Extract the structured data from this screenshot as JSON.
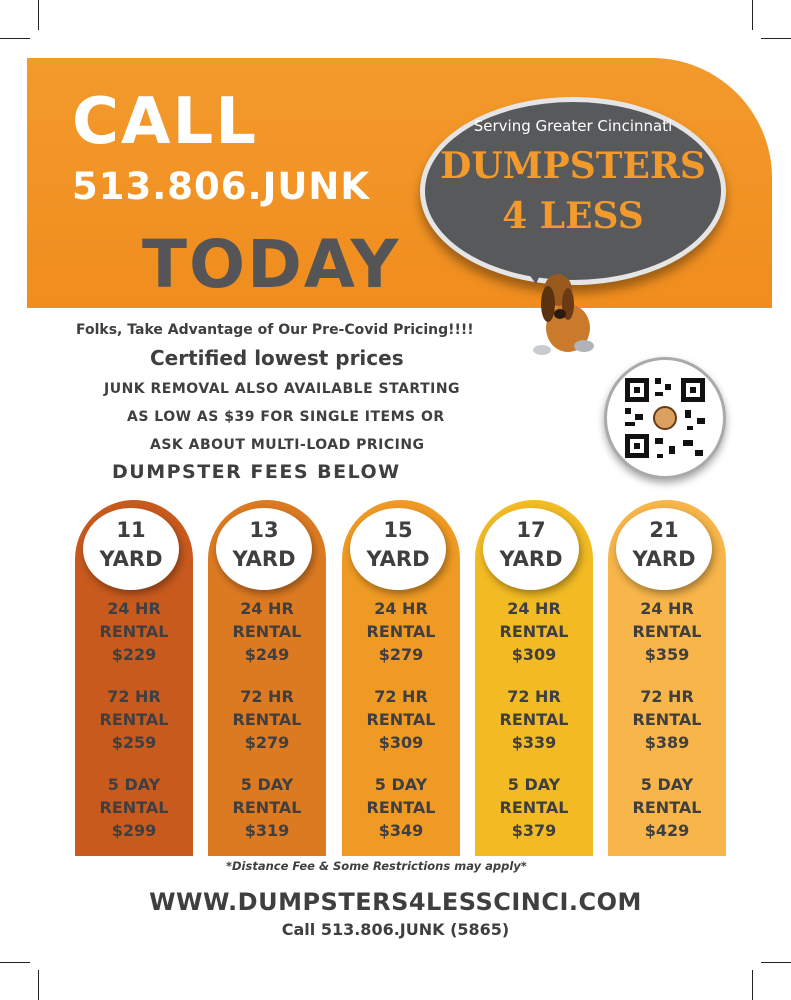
{
  "banner": {
    "call": "CALL",
    "number": "513.806.JUNK",
    "today": "TODAY"
  },
  "bubble": {
    "serving": "Serving Greater Cincinnati",
    "brand_line1": "DUMPSTERS",
    "brand_line2": "4 LESS"
  },
  "promo": {
    "line1": "Folks, Take Advantage of Our Pre-Covid Pricing!!!!",
    "line2": "Certified lowest prices",
    "line3": "JUNK REMOVAL ALSO AVAILABLE STARTING",
    "line4": "AS LOW AS $39 FOR SINGLE ITEMS OR",
    "line5": "ASK ABOUT MULTI-LOAD PRICING",
    "line6": "DUMPSTER FEES BELOW"
  },
  "pricing": [
    {
      "size": "11",
      "unit": "YARD",
      "color": "#c85a1e",
      "r24": [
        "24 HR",
        "RENTAL",
        "$229"
      ],
      "r72": [
        "72 HR",
        "RENTAL",
        "$259"
      ],
      "r5": [
        "5 DAY",
        "RENTAL",
        "$299"
      ]
    },
    {
      "size": "13",
      "unit": "YARD",
      "color": "#dc7a22",
      "r24": [
        "24 HR",
        "RENTAL",
        "$249"
      ],
      "r72": [
        "72 HR",
        "RENTAL",
        "$279"
      ],
      "r5": [
        "5 DAY",
        "RENTAL",
        "$319"
      ]
    },
    {
      "size": "15",
      "unit": "YARD",
      "color": "#ef9a24",
      "r24": [
        "24 HR",
        "RENTAL",
        "$279"
      ],
      "r72": [
        "72 HR",
        "RENTAL",
        "$309"
      ],
      "r5": [
        "5 DAY",
        "RENTAL",
        "$349"
      ]
    },
    {
      "size": "17",
      "unit": "YARD",
      "color": "#f2bb24",
      "r24": [
        "24 HR",
        "RENTAL",
        "$309"
      ],
      "r72": [
        "72 HR",
        "RENTAL",
        "$339"
      ],
      "r5": [
        "5 DAY",
        "RENTAL",
        "$379"
      ]
    },
    {
      "size": "21",
      "unit": "YARD",
      "color": "#f7b54a",
      "r24": [
        "24 HR",
        "RENTAL",
        "$359"
      ],
      "r72": [
        "72 HR",
        "RENTAL",
        "$389"
      ],
      "r5": [
        "5 DAY",
        "RENTAL",
        "$429"
      ]
    }
  ],
  "disclaimer": "*Distance Fee & Some Restrictions may apply*",
  "footer": {
    "website": "WWW.DUMPSTERS4LESSCINCI.COM",
    "phone": "Call 513.806.JUNK (5865)"
  },
  "colors": {
    "orange": "#f39a2c",
    "charcoal": "#58595b",
    "text": "#3f3f41"
  },
  "icons": [
    "bloodhound-dog-mascot",
    "qr-code"
  ]
}
